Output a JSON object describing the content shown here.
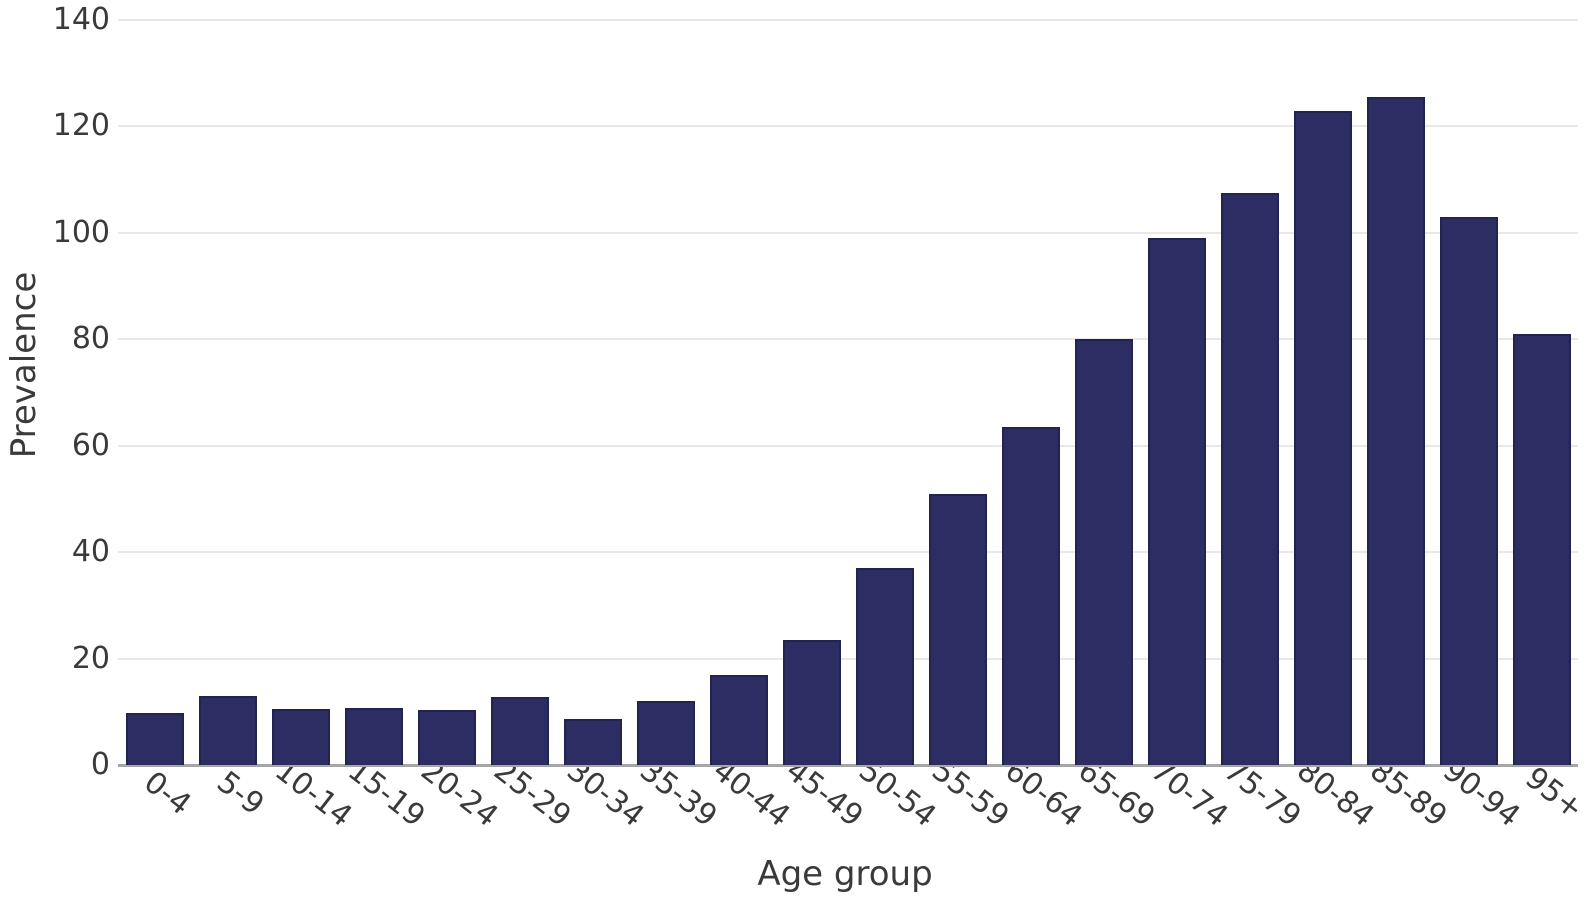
{
  "chart_data": {
    "type": "bar",
    "title": "",
    "xlabel": "Age group",
    "ylabel": "Prevalence",
    "categories": [
      "0-4",
      "5-9",
      "10-14",
      "15-19",
      "20-24",
      "25-29",
      "30-34",
      "35-39",
      "40-44",
      "45-49",
      "50-54",
      "55-59",
      "60-64",
      "65-69",
      "70-74",
      "75-79",
      "80-84",
      "85-89",
      "90-94",
      "95+"
    ],
    "values": [
      9.8,
      13.0,
      10.5,
      10.8,
      10.3,
      12.7,
      8.6,
      12.1,
      17.0,
      23.5,
      37.0,
      51.0,
      63.5,
      80.0,
      99.0,
      107.5,
      123.0,
      125.5,
      103.0,
      81.0
    ],
    "ylim": [
      0,
      140
    ],
    "yticks": [
      0,
      20,
      40,
      60,
      80,
      100,
      120,
      140
    ],
    "grid": true,
    "legend": "none",
    "x_tick_rotation_deg": 38,
    "colors": {
      "bar_fill": "#2b2d63",
      "bar_edge": "#212350",
      "gridline": "#e8e8e8",
      "axis_line": "#a6a6a6",
      "text": "#3a3a3a"
    }
  }
}
